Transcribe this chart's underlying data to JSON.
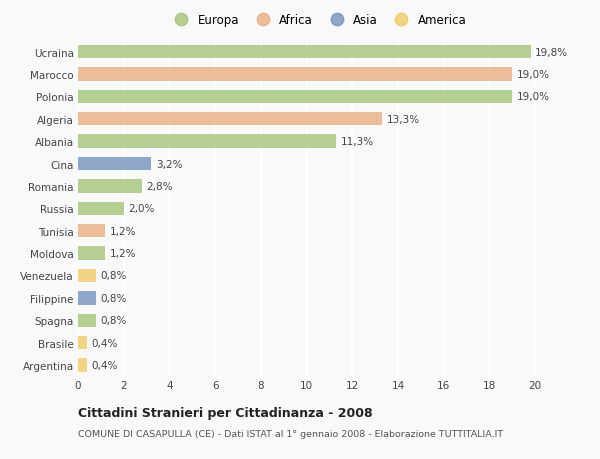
{
  "countries": [
    "Ucraina",
    "Marocco",
    "Polonia",
    "Algeria",
    "Albania",
    "Cina",
    "Romania",
    "Russia",
    "Tunisia",
    "Moldova",
    "Venezuela",
    "Filippine",
    "Spagna",
    "Brasile",
    "Argentina"
  ],
  "values": [
    19.8,
    19.0,
    19.0,
    13.3,
    11.3,
    3.2,
    2.8,
    2.0,
    1.2,
    1.2,
    0.8,
    0.8,
    0.8,
    0.4,
    0.4
  ],
  "labels": [
    "19,8%",
    "19,0%",
    "19,0%",
    "13,3%",
    "11,3%",
    "3,2%",
    "2,8%",
    "2,0%",
    "1,2%",
    "1,2%",
    "0,8%",
    "0,8%",
    "0,8%",
    "0,4%",
    "0,4%"
  ],
  "continents": [
    "Europa",
    "Africa",
    "Europa",
    "Africa",
    "Europa",
    "Asia",
    "Europa",
    "Europa",
    "Africa",
    "Europa",
    "America",
    "Asia",
    "Europa",
    "America",
    "America"
  ],
  "continent_colors": {
    "Europa": "#9dc16e",
    "Africa": "#e8a87c",
    "Asia": "#6b8cba",
    "America": "#f0c85a"
  },
  "legend_labels": [
    "Europa",
    "Africa",
    "Asia",
    "America"
  ],
  "legend_colors": [
    "#9dc16e",
    "#e8a87c",
    "#6b8cba",
    "#f0c85a"
  ],
  "xlim": [
    0,
    21
  ],
  "xticks": [
    0,
    2,
    4,
    6,
    8,
    10,
    12,
    14,
    16,
    18,
    20
  ],
  "title": "Cittadini Stranieri per Cittadinanza - 2008",
  "subtitle": "COMUNE DI CASAPULLA (CE) - Dati ISTAT al 1° gennaio 2008 - Elaborazione TUTTITALIA.IT",
  "background_color": "#f9f9f9",
  "bar_height": 0.6,
  "grid_color": "#ffffff",
  "label_fontsize": 7.5,
  "tick_fontsize": 7.5,
  "alpha": 0.75
}
